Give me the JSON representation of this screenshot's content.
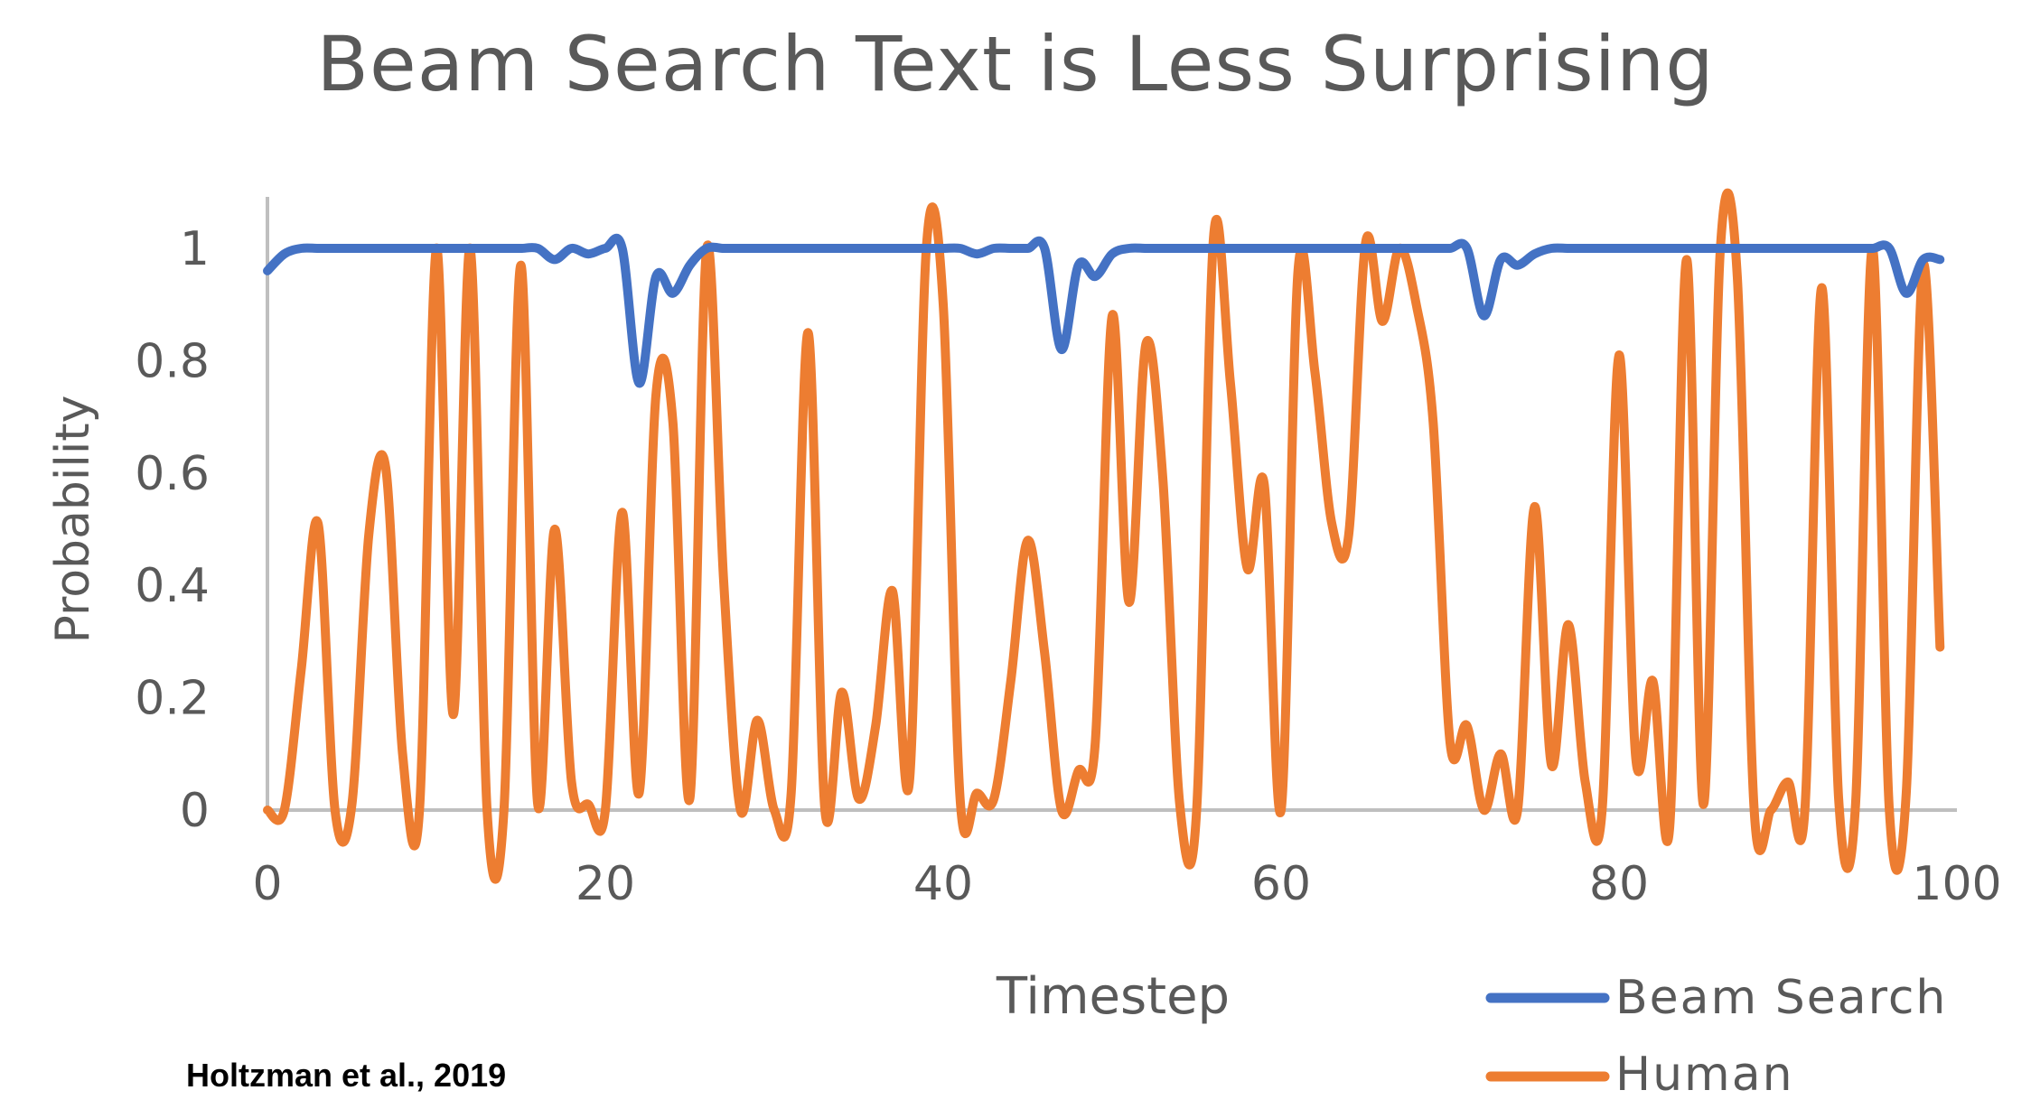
{
  "chart_data": {
    "type": "line",
    "title": "Beam Search Text is Less Surprising",
    "xlabel": "Timestep",
    "ylabel": "Probability",
    "xlim": [
      0,
      100
    ],
    "ylim": [
      0,
      1.1
    ],
    "x_ticks": [
      "0",
      "20",
      "40",
      "60",
      "80",
      "100"
    ],
    "y_ticks": [
      "0",
      "0.2",
      "0.4",
      "0.6",
      "0.8",
      "1"
    ],
    "grid": false,
    "legend_position": "bottom-right",
    "x": [
      0,
      1,
      2,
      3,
      4,
      5,
      6,
      7,
      8,
      9,
      10,
      11,
      12,
      13,
      14,
      15,
      16,
      17,
      18,
      19,
      20,
      21,
      22,
      23,
      24,
      25,
      26,
      27,
      28,
      29,
      30,
      31,
      32,
      33,
      34,
      35,
      36,
      37,
      38,
      39,
      40,
      41,
      42,
      43,
      44,
      45,
      46,
      47,
      48,
      49,
      50,
      51,
      52,
      53,
      54,
      55,
      56,
      57,
      58,
      59,
      60,
      61,
      62,
      63,
      64,
      65,
      66,
      67,
      68,
      69,
      70,
      71,
      72,
      73,
      74,
      75,
      76,
      77,
      78,
      79,
      80,
      81,
      82,
      83,
      84,
      85,
      86,
      87,
      88,
      89,
      90,
      91,
      92,
      93,
      94,
      95,
      96,
      97,
      98,
      99
    ],
    "series": [
      {
        "name": "Beam Search",
        "color": "#4472C4",
        "values": [
          0.96,
          0.99,
          1.0,
          1.0,
          1.0,
          1.0,
          1.0,
          1.0,
          1.0,
          1.0,
          1.0,
          1.0,
          1.0,
          1.0,
          1.0,
          1.0,
          1.0,
          0.98,
          1.0,
          0.99,
          1.0,
          1.0,
          0.76,
          0.95,
          0.92,
          0.97,
          1.0,
          1.0,
          1.0,
          1.0,
          1.0,
          1.0,
          1.0,
          1.0,
          1.0,
          1.0,
          1.0,
          1.0,
          1.0,
          1.0,
          1.0,
          1.0,
          0.99,
          1.0,
          1.0,
          1.0,
          1.0,
          0.82,
          0.97,
          0.95,
          0.99,
          1.0,
          1.0,
          1.0,
          1.0,
          1.0,
          1.0,
          1.0,
          1.0,
          1.0,
          1.0,
          1.0,
          1.0,
          1.0,
          1.0,
          1.0,
          1.0,
          1.0,
          1.0,
          1.0,
          1.0,
          1.0,
          0.88,
          0.98,
          0.97,
          0.99,
          1.0,
          1.0,
          1.0,
          1.0,
          1.0,
          1.0,
          1.0,
          1.0,
          1.0,
          1.0,
          1.0,
          1.0,
          1.0,
          1.0,
          1.0,
          1.0,
          1.0,
          1.0,
          1.0,
          1.0,
          1.0,
          0.92,
          0.98,
          0.98
        ]
      },
      {
        "name": "Human",
        "color": "#ED7D31",
        "values": [
          0.0,
          0.0,
          0.25,
          0.51,
          0.0,
          0.01,
          0.49,
          0.61,
          0.1,
          0.0,
          1.0,
          0.17,
          1.0,
          0.0,
          0.0,
          0.97,
          0.01,
          0.5,
          0.05,
          0.01,
          0.0,
          0.53,
          0.03,
          0.74,
          0.69,
          0.02,
          1.0,
          0.41,
          0.0,
          0.16,
          0.0,
          0.03,
          0.85,
          0.0,
          0.21,
          0.02,
          0.15,
          0.39,
          0.05,
          1.0,
          0.9,
          0.02,
          0.03,
          0.02,
          0.23,
          0.48,
          0.28,
          0.0,
          0.07,
          0.12,
          0.88,
          0.37,
          0.83,
          0.59,
          0.01,
          0.0,
          1.02,
          0.76,
          0.43,
          0.58,
          0.0,
          0.96,
          0.78,
          0.51,
          0.49,
          1.01,
          0.87,
          1.0,
          0.9,
          0.69,
          0.12,
          0.15,
          0.0,
          0.1,
          0.0,
          0.54,
          0.08,
          0.33,
          0.05,
          0.0,
          0.81,
          0.09,
          0.23,
          -0.03,
          0.98,
          0.01,
          1.0,
          0.95,
          0.0,
          0.0,
          0.05,
          0.0,
          0.93,
          0.02,
          0.01,
          1.0,
          0.0,
          0.03,
          0.97,
          0.29
        ]
      }
    ]
  },
  "citation": "Holtzman et al., 2019"
}
